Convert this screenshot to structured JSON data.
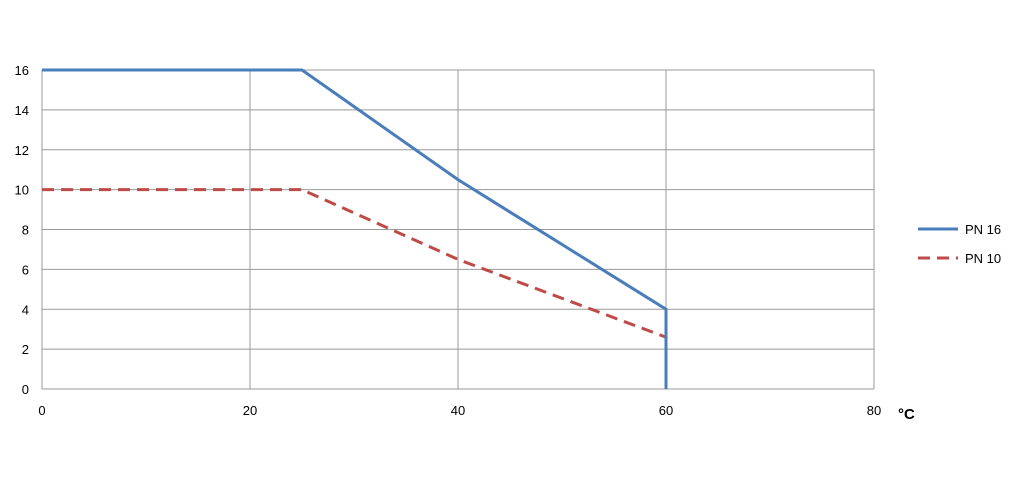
{
  "chart_data": {
    "type": "line",
    "title": "",
    "xlabel": "°C",
    "ylabel": "",
    "xlim": [
      0,
      80
    ],
    "ylim": [
      0,
      16
    ],
    "xticks": [
      0,
      20,
      40,
      60,
      80
    ],
    "yticks": [
      0,
      2,
      4,
      6,
      8,
      10,
      12,
      14,
      16
    ],
    "grid": true,
    "legend_position": "right",
    "series": [
      {
        "name": "PN 16",
        "color": "#4a7ebb",
        "dash": "solid",
        "x": [
          0,
          25,
          40,
          60,
          60
        ],
        "y": [
          16,
          16,
          10.5,
          4,
          0
        ]
      },
      {
        "name": "PN 10",
        "color": "#be4b48",
        "dash": "dashed",
        "x": [
          0,
          25,
          40,
          60,
          60
        ],
        "y": [
          10,
          10,
          6.5,
          2.6,
          0
        ]
      }
    ]
  }
}
